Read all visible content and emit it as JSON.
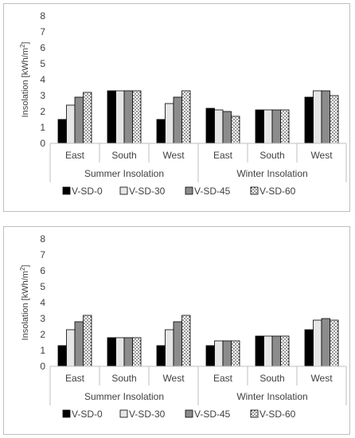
{
  "chart_data": [
    {
      "type": "bar",
      "ylabel": "Insolation [kWh/m²]",
      "ylabel_text": "Insolation [kWh/m",
      "ylabel_sup": "2",
      "ylabel_end": "]",
      "ylim": [
        0,
        8
      ],
      "yticks": [
        "0",
        "1",
        "2",
        "3",
        "4",
        "5",
        "6",
        "7",
        "8"
      ],
      "groups": [
        {
          "label": "Summer Insolation",
          "categories": [
            "East",
            "South",
            "West"
          ]
        },
        {
          "label": "Winter Insolation",
          "categories": [
            "East",
            "South",
            "West"
          ]
        }
      ],
      "series": [
        {
          "name": "V-SD-0",
          "values": [
            1.5,
            3.3,
            1.5,
            2.2,
            2.1,
            2.9
          ]
        },
        {
          "name": "V-SD-30",
          "values": [
            2.4,
            3.3,
            2.5,
            2.1,
            2.1,
            3.3
          ]
        },
        {
          "name": "V-SD-45",
          "values": [
            2.9,
            3.3,
            2.9,
            2.0,
            2.1,
            3.3
          ]
        },
        {
          "name": "V-SD-60",
          "values": [
            3.2,
            3.3,
            3.3,
            1.7,
            2.1,
            3.0
          ]
        }
      ],
      "legend_position": "bottom",
      "grid": false
    },
    {
      "type": "bar",
      "ylabel": "Insolation [kWh/m²]",
      "ylabel_text": "Insolation [kWh/m",
      "ylabel_sup": "2",
      "ylabel_end": "]",
      "ylim": [
        0,
        8
      ],
      "yticks": [
        "0",
        "1",
        "2",
        "3",
        "4",
        "5",
        "6",
        "7",
        "8"
      ],
      "groups": [
        {
          "label": "Summer Insolation",
          "categories": [
            "East",
            "South",
            "West"
          ]
        },
        {
          "label": "Winter Insolation",
          "categories": [
            "East",
            "South",
            "West"
          ]
        }
      ],
      "series": [
        {
          "name": "V-SD-0",
          "values": [
            1.3,
            1.8,
            1.3,
            1.3,
            1.9,
            2.3
          ]
        },
        {
          "name": "V-SD-30",
          "values": [
            2.3,
            1.8,
            2.3,
            1.6,
            1.9,
            2.9
          ]
        },
        {
          "name": "V-SD-45",
          "values": [
            2.8,
            1.8,
            2.8,
            1.6,
            1.9,
            3.0
          ]
        },
        {
          "name": "V-SD-60",
          "values": [
            3.2,
            1.8,
            3.2,
            1.6,
            1.9,
            2.9
          ]
        }
      ],
      "legend_position": "bottom",
      "grid": false
    }
  ],
  "series_styles": [
    {
      "fill": "#000000",
      "pattern": "solid"
    },
    {
      "fill": "#e6e6e6",
      "pattern": "solid"
    },
    {
      "fill": "#8c8c8c",
      "pattern": "solid"
    },
    {
      "fill": "#ffffff",
      "pattern": "dots"
    }
  ]
}
